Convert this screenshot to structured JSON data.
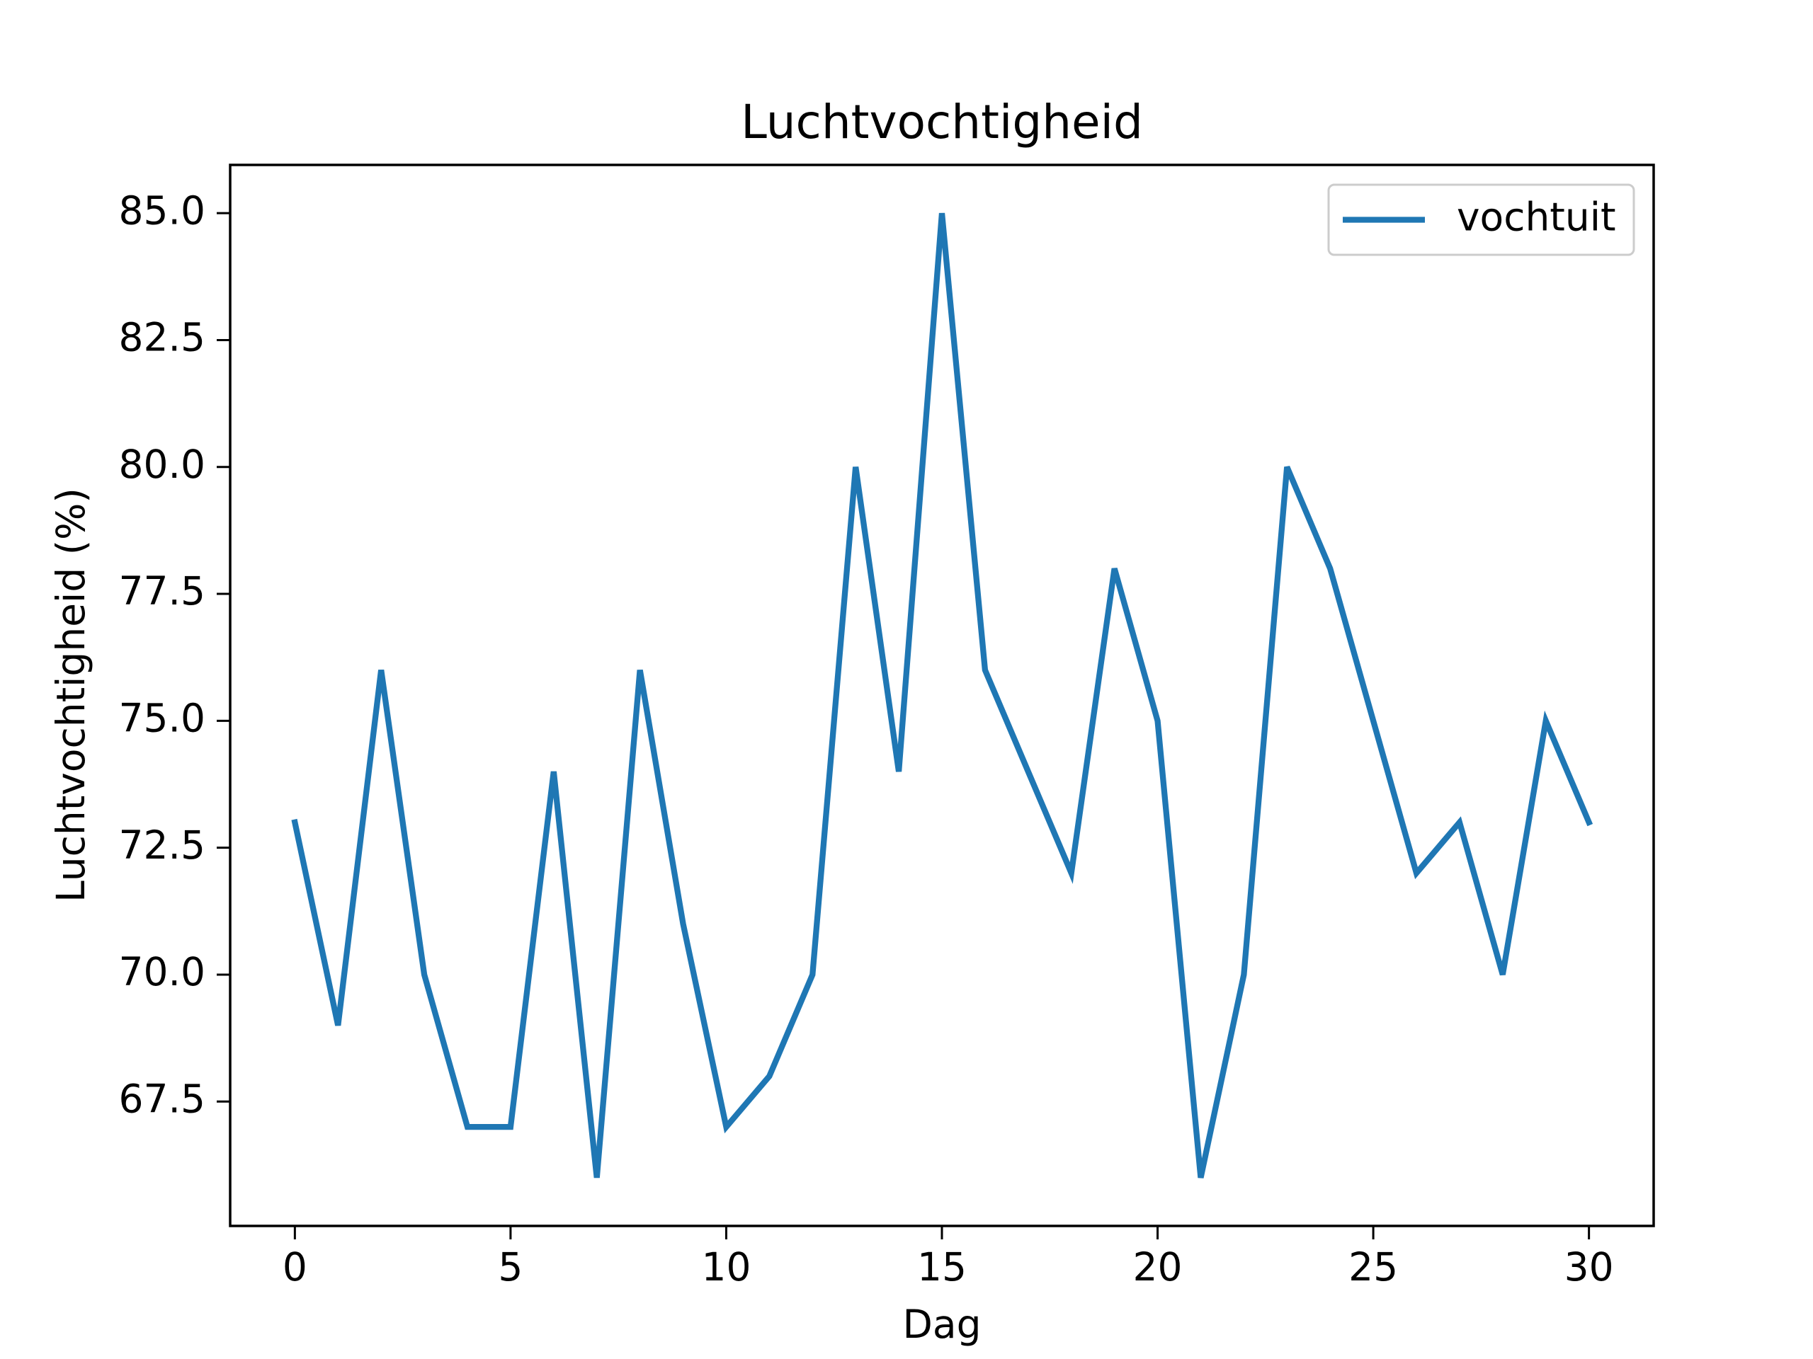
{
  "chart_data": {
    "type": "line",
    "title": "Luchtvochtigheid",
    "xlabel": "Dag",
    "ylabel": "Luchtvochtigheid (%)",
    "x": [
      0,
      1,
      2,
      3,
      4,
      5,
      6,
      7,
      8,
      9,
      10,
      11,
      12,
      13,
      14,
      15,
      16,
      17,
      18,
      19,
      20,
      21,
      22,
      23,
      24,
      25,
      26,
      27,
      28,
      29,
      30
    ],
    "series": [
      {
        "name": "vochtuit",
        "color": "#1f77b4",
        "values": [
          73,
          69,
          76,
          70,
          67,
          67,
          74,
          66,
          76,
          71,
          67,
          68,
          70,
          80,
          74,
          85,
          76,
          74,
          72,
          78,
          75,
          66,
          70,
          80,
          78,
          75,
          72,
          73,
          70,
          75,
          73
        ]
      }
    ],
    "xlim": [
      -1.5,
      31.5
    ],
    "ylim": [
      65.05,
      85.95
    ],
    "xticks": [
      0,
      5,
      10,
      15,
      20,
      25,
      30
    ],
    "yticks": [
      67.5,
      {
        "value": 70,
        "label": "70.0"
      },
      72.5,
      {
        "value": 75,
        "label": "75.0"
      },
      77.5,
      {
        "value": 80,
        "label": "80.0"
      },
      82.5,
      {
        "value": 85,
        "label": "85.0"
      }
    ],
    "legend": "upper right",
    "grid": false
  }
}
